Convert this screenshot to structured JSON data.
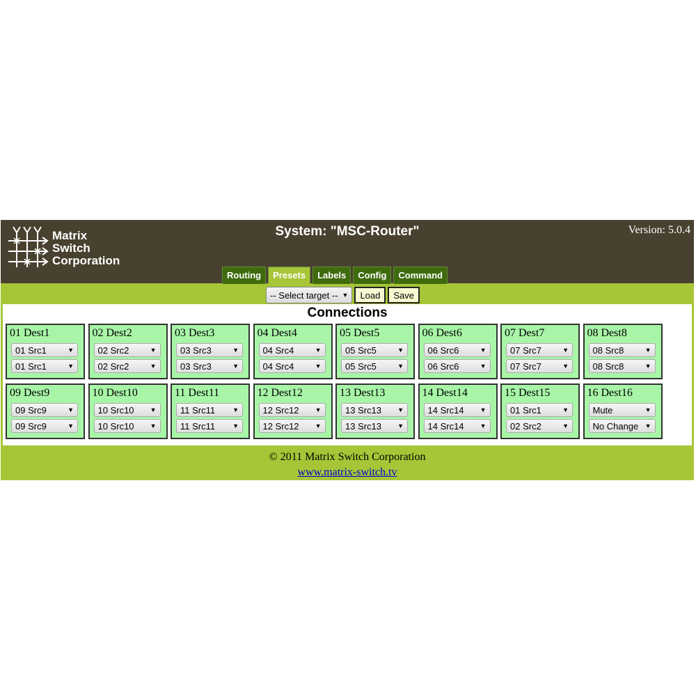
{
  "header": {
    "logo_text": [
      "Matrix",
      "Switch",
      "Corporation"
    ],
    "system_title": "System: \"MSC-Router\"",
    "version": "Version: 5.0.4"
  },
  "tabs": [
    {
      "label": "Routing",
      "active": false
    },
    {
      "label": "Presets",
      "active": true
    },
    {
      "label": "Labels",
      "active": false
    },
    {
      "label": "Config",
      "active": false
    },
    {
      "label": "Command",
      "active": false
    }
  ],
  "toolbar": {
    "target_select": "-- Select target --",
    "load": "Load",
    "save": "Save"
  },
  "section_title": "Connections",
  "destinations": [
    {
      "name": "01 Dest1",
      "sel1": "01 Src1",
      "sel2": "01 Src1"
    },
    {
      "name": "02 Dest2",
      "sel1": "02 Src2",
      "sel2": "02 Src2"
    },
    {
      "name": "03 Dest3",
      "sel1": "03 Src3",
      "sel2": "03 Src3"
    },
    {
      "name": "04 Dest4",
      "sel1": "04 Src4",
      "sel2": "04 Src4"
    },
    {
      "name": "05 Dest5",
      "sel1": "05 Src5",
      "sel2": "05 Src5"
    },
    {
      "name": "06 Dest6",
      "sel1": "06 Src6",
      "sel2": "06 Src6"
    },
    {
      "name": "07 Dest7",
      "sel1": "07 Src7",
      "sel2": "07 Src7"
    },
    {
      "name": "08 Dest8",
      "sel1": "08 Src8",
      "sel2": "08 Src8"
    },
    {
      "name": "09 Dest9",
      "sel1": "09 Src9",
      "sel2": "09 Src9"
    },
    {
      "name": "10 Dest10",
      "sel1": "10 Src10",
      "sel2": "10 Src10"
    },
    {
      "name": "11 Dest11",
      "sel1": "11 Src11",
      "sel2": "11 Src11"
    },
    {
      "name": "12 Dest12",
      "sel1": "12 Src12",
      "sel2": "12 Src12"
    },
    {
      "name": "13 Dest13",
      "sel1": "13 Src13",
      "sel2": "13 Src13"
    },
    {
      "name": "14 Dest14",
      "sel1": "14 Src14",
      "sel2": "14 Src14"
    },
    {
      "name": "15 Dest15",
      "sel1": "01 Src1",
      "sel2": "02 Src2"
    },
    {
      "name": "16 Dest16",
      "sel1": "Mute",
      "sel2": "No Change"
    }
  ],
  "footer": {
    "copyright": "© 2011 Matrix Switch Corporation",
    "link": "www.matrix-switch.tv"
  },
  "colors": {
    "header_bg": "#48412f",
    "band": "#a6c637",
    "tab": "#3f6b0d",
    "cell": "#a8f5a8"
  }
}
